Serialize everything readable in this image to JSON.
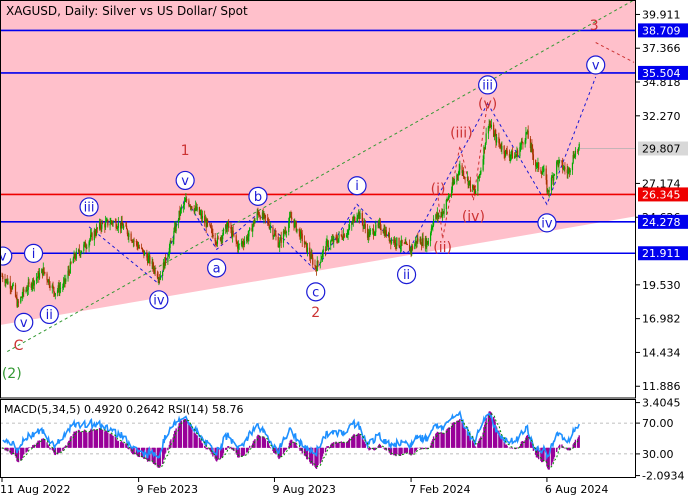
{
  "header": {
    "symbol_title": "XAGUSD, Daily:  Silver vs US Dollar/ Spot",
    "indicators": "MACD(5,34,5) 0.4920 0.2642 RSI(14) 58.76"
  },
  "chart_data": [
    {
      "type": "line",
      "subtype": "candlestick",
      "title": "XAGUSD, Daily:  Silver vs US Dollar/ Spot",
      "ylim": [
        11.0,
        41.0
      ],
      "y_ticks": [
        "39.911",
        "37.366",
        "34.818",
        "32.270",
        "27.174",
        "24.626",
        "19.530",
        "16.982",
        "14.434",
        "11.886"
      ],
      "x_ticks": [
        "11 Aug 2022",
        "9 Feb 2023",
        "9 Aug 2023",
        "7 Feb 2024",
        "6 Aug 2024"
      ],
      "x_tick_dates": [
        "2022-08-11",
        "2023-02-09",
        "2023-08-09",
        "2024-02-07",
        "2024-08-06"
      ],
      "x_range": [
        "2022-08-11",
        "2024-11-30"
      ],
      "current_price": 29.807,
      "close_path": [
        [
          "2022-08-11",
          20.2
        ],
        [
          "2022-08-25",
          19.4
        ],
        [
          "2022-09-01",
          18.0
        ],
        [
          "2022-09-09",
          19.0
        ],
        [
          "2022-09-20",
          19.7
        ],
        [
          "2022-10-05",
          20.6
        ],
        [
          "2022-10-20",
          19.0
        ],
        [
          "2022-11-01",
          19.5
        ],
        [
          "2022-11-14",
          21.5
        ],
        [
          "2022-12-01",
          22.6
        ],
        [
          "2022-12-20",
          24.0
        ],
        [
          "2023-01-05",
          24.3
        ],
        [
          "2023-01-20",
          23.9
        ],
        [
          "2023-02-09",
          22.4
        ],
        [
          "2023-02-24",
          21.3
        ],
        [
          "2023-03-09",
          20.1
        ],
        [
          "2023-03-24",
          22.6
        ],
        [
          "2023-04-05",
          25.0
        ],
        [
          "2023-04-14",
          25.9
        ],
        [
          "2023-04-28",
          25.1
        ],
        [
          "2023-05-12",
          24.0
        ],
        [
          "2023-05-25",
          22.8
        ],
        [
          "2023-06-08",
          24.0
        ],
        [
          "2023-06-22",
          22.4
        ],
        [
          "2023-07-05",
          23.2
        ],
        [
          "2023-07-18",
          25.0
        ],
        [
          "2023-08-01",
          24.2
        ],
        [
          "2023-08-15",
          22.6
        ],
        [
          "2023-08-31",
          24.6
        ],
        [
          "2023-09-15",
          23.0
        ],
        [
          "2023-10-03",
          20.8
        ],
        [
          "2023-10-18",
          22.6
        ],
        [
          "2023-11-01",
          23.0
        ],
        [
          "2023-11-15",
          23.6
        ],
        [
          "2023-11-28",
          25.0
        ],
        [
          "2023-12-12",
          23.3
        ],
        [
          "2023-12-28",
          24.0
        ],
        [
          "2024-01-10",
          23.0
        ],
        [
          "2024-01-24",
          22.6
        ],
        [
          "2024-02-07",
          22.2
        ],
        [
          "2024-02-15",
          22.9
        ],
        [
          "2024-02-29",
          22.7
        ],
        [
          "2024-03-08",
          24.5
        ],
        [
          "2024-03-20",
          25.0
        ],
        [
          "2024-04-04",
          27.2
        ],
        [
          "2024-04-12",
          28.4
        ],
        [
          "2024-04-22",
          27.5
        ],
        [
          "2024-05-02",
          26.4
        ],
        [
          "2024-05-10",
          28.3
        ],
        [
          "2024-05-20",
          31.8
        ],
        [
          "2024-05-31",
          30.4
        ],
        [
          "2024-06-12",
          29.5
        ],
        [
          "2024-06-25",
          29.2
        ],
        [
          "2024-07-10",
          31.0
        ],
        [
          "2024-07-22",
          28.6
        ],
        [
          "2024-08-02",
          28.0
        ],
        [
          "2024-08-07",
          26.5
        ],
        [
          "2024-08-20",
          28.8
        ],
        [
          "2024-09-03",
          28.0
        ],
        [
          "2024-09-12",
          29.5
        ],
        [
          "2024-09-18",
          29.807
        ]
      ],
      "levels": [
        {
          "value": 38.709,
          "label": "38.709",
          "color": "#0000ee"
        },
        {
          "value": 35.504,
          "label": "35.504",
          "color": "#0000ee"
        },
        {
          "value": 26.345,
          "label": "26.345",
          "color": "#ee0000"
        },
        {
          "value": 24.278,
          "label": "24.278",
          "color": "#0000ee"
        },
        {
          "value": 21.911,
          "label": "21.911",
          "color": "#0000ee"
        }
      ],
      "zones": [
        {
          "from": 26.345,
          "to": 41.0,
          "color": "#ffc0cb"
        },
        {
          "from": 21.911,
          "to": 26.345,
          "color": "#ffc0cb",
          "lower_bound": "rising support line"
        }
      ],
      "channel_lines": [
        {
          "from": [
            "2022-08-18",
            14.5
          ],
          "to": [
            "2024-11-30",
            41.0
          ],
          "style": "dashed",
          "color": "#339933"
        }
      ],
      "wave_labels": [
        {
          "text": "v",
          "date": "2022-08-12",
          "price": 21.7,
          "style": "circle",
          "color": "#1a1ad6"
        },
        {
          "text": "i",
          "date": "2022-09-22",
          "price": 21.9,
          "style": "circle",
          "color": "#1a1ad6"
        },
        {
          "text": "v",
          "date": "2022-09-09",
          "price": 16.7,
          "style": "circle",
          "color": "#1a1ad6"
        },
        {
          "text": "ii",
          "date": "2022-10-13",
          "price": 17.3,
          "style": "circle",
          "color": "#1a1ad6"
        },
        {
          "text": "C",
          "date": "2022-09-02",
          "price": 15.0,
          "style": "plain",
          "color": "#cc3333"
        },
        {
          "text": "(2)",
          "date": "2022-08-24",
          "price": 12.9,
          "style": "plain",
          "color": "#339933"
        },
        {
          "text": "iii",
          "date": "2022-12-05",
          "price": 25.4,
          "style": "circle",
          "color": "#1a1ad6"
        },
        {
          "text": "iv",
          "date": "2023-03-08",
          "price": 18.4,
          "style": "circle",
          "color": "#1a1ad6"
        },
        {
          "text": "v",
          "date": "2023-04-12",
          "price": 27.4,
          "style": "circle",
          "color": "#1a1ad6"
        },
        {
          "text": "1",
          "date": "2023-04-12",
          "price": 29.7,
          "style": "plain",
          "color": "#cc3333"
        },
        {
          "text": "a",
          "date": "2023-05-24",
          "price": 20.8,
          "style": "circle",
          "color": "#1a1ad6"
        },
        {
          "text": "b",
          "date": "2023-07-18",
          "price": 26.2,
          "style": "circle",
          "color": "#1a1ad6"
        },
        {
          "text": "c",
          "date": "2023-10-03",
          "price": 19.0,
          "style": "circle",
          "color": "#1a1ad6"
        },
        {
          "text": "2",
          "date": "2023-10-03",
          "price": 17.5,
          "style": "plain",
          "color": "#cc3333"
        },
        {
          "text": "i",
          "date": "2023-11-27",
          "price": 27.0,
          "style": "circle",
          "color": "#1a1ad6"
        },
        {
          "text": "ii",
          "date": "2024-02-01",
          "price": 20.3,
          "style": "circle",
          "color": "#1a1ad6"
        },
        {
          "text": "(i)",
          "date": "2024-03-14",
          "price": 26.8,
          "style": "plain",
          "color": "#cc3333"
        },
        {
          "text": "(ii)",
          "date": "2024-03-20",
          "price": 22.4,
          "style": "plain",
          "color": "#cc3333"
        },
        {
          "text": "(iii)",
          "date": "2024-04-14",
          "price": 31.0,
          "style": "plain",
          "color": "#cc3333"
        },
        {
          "text": "(iv)",
          "date": "2024-04-30",
          "price": 24.7,
          "style": "plain",
          "color": "#cc3333"
        },
        {
          "text": "(v)",
          "date": "2024-05-19",
          "price": 33.2,
          "style": "plain",
          "color": "#cc3333"
        },
        {
          "text": "iii",
          "date": "2024-05-19",
          "price": 34.6,
          "style": "circle",
          "color": "#1a1ad6"
        },
        {
          "text": "iv",
          "date": "2024-08-06",
          "price": 24.2,
          "style": "circle",
          "color": "#1a1ad6"
        },
        {
          "text": "v",
          "date": "2024-10-10",
          "price": 36.1,
          "style": "circle",
          "color": "#1a1ad6"
        },
        {
          "text": "3",
          "date": "2024-10-08",
          "price": 39.1,
          "style": "plain",
          "color": "#cc3333"
        }
      ],
      "wave_paths": [
        {
          "color": "#1a1ad6",
          "points": [
            [
              "2022-12-05",
              23.9
            ],
            [
              "2023-03-08",
              19.6
            ],
            [
              "2023-04-12",
              26.1
            ]
          ]
        },
        {
          "color": "#1a1ad6",
          "points": [
            [
              "2023-04-12",
              26.1
            ],
            [
              "2023-05-24",
              22.2
            ],
            [
              "2023-07-18",
              24.9
            ],
            [
              "2023-10-03",
              20.6
            ]
          ]
        },
        {
          "color": "#1a1ad6",
          "points": [
            [
              "2023-10-03",
              20.6
            ],
            [
              "2023-11-27",
              25.6
            ],
            [
              "2024-02-01",
              21.8
            ],
            [
              "2024-05-19",
              33.2
            ]
          ]
        },
        {
          "color": "#cc3333",
          "points": [
            [
              "2024-03-14",
              26.1
            ],
            [
              "2024-03-20",
              23.0
            ],
            [
              "2024-04-12",
              30.0
            ],
            [
              "2024-04-30",
              25.9
            ],
            [
              "2024-05-19",
              33.3
            ]
          ]
        },
        {
          "color": "#1a1ad6",
          "points": [
            [
              "2024-05-19",
              33.2
            ],
            [
              "2024-08-06",
              25.6
            ],
            [
              "2024-10-10",
              35.2
            ]
          ]
        },
        {
          "color": "#cc3333",
          "points": [
            [
              "2024-10-10",
              37.8
            ],
            [
              "2024-11-30",
              36.3
            ]
          ]
        }
      ]
    },
    {
      "type": "bar",
      "subtype": "MACD histogram + RSI line",
      "title": "MACD(5,34,5) 0.4920 0.2642 RSI(14) 58.76",
      "macd": {
        "value": 0.492,
        "signal": 0.2642,
        "ylim": [
          -2.2,
          3.6
        ],
        "y_ticks": [
          "3.4045",
          "-2.0934"
        ]
      },
      "rsi": {
        "value": 58.76,
        "levels": [
          70,
          30
        ],
        "y_ticks": [
          "70.00",
          "30.00"
        ]
      },
      "colors": {
        "histogram": "#990099",
        "rsi_line": "#1e90ff",
        "signal": "#008800"
      }
    }
  ]
}
